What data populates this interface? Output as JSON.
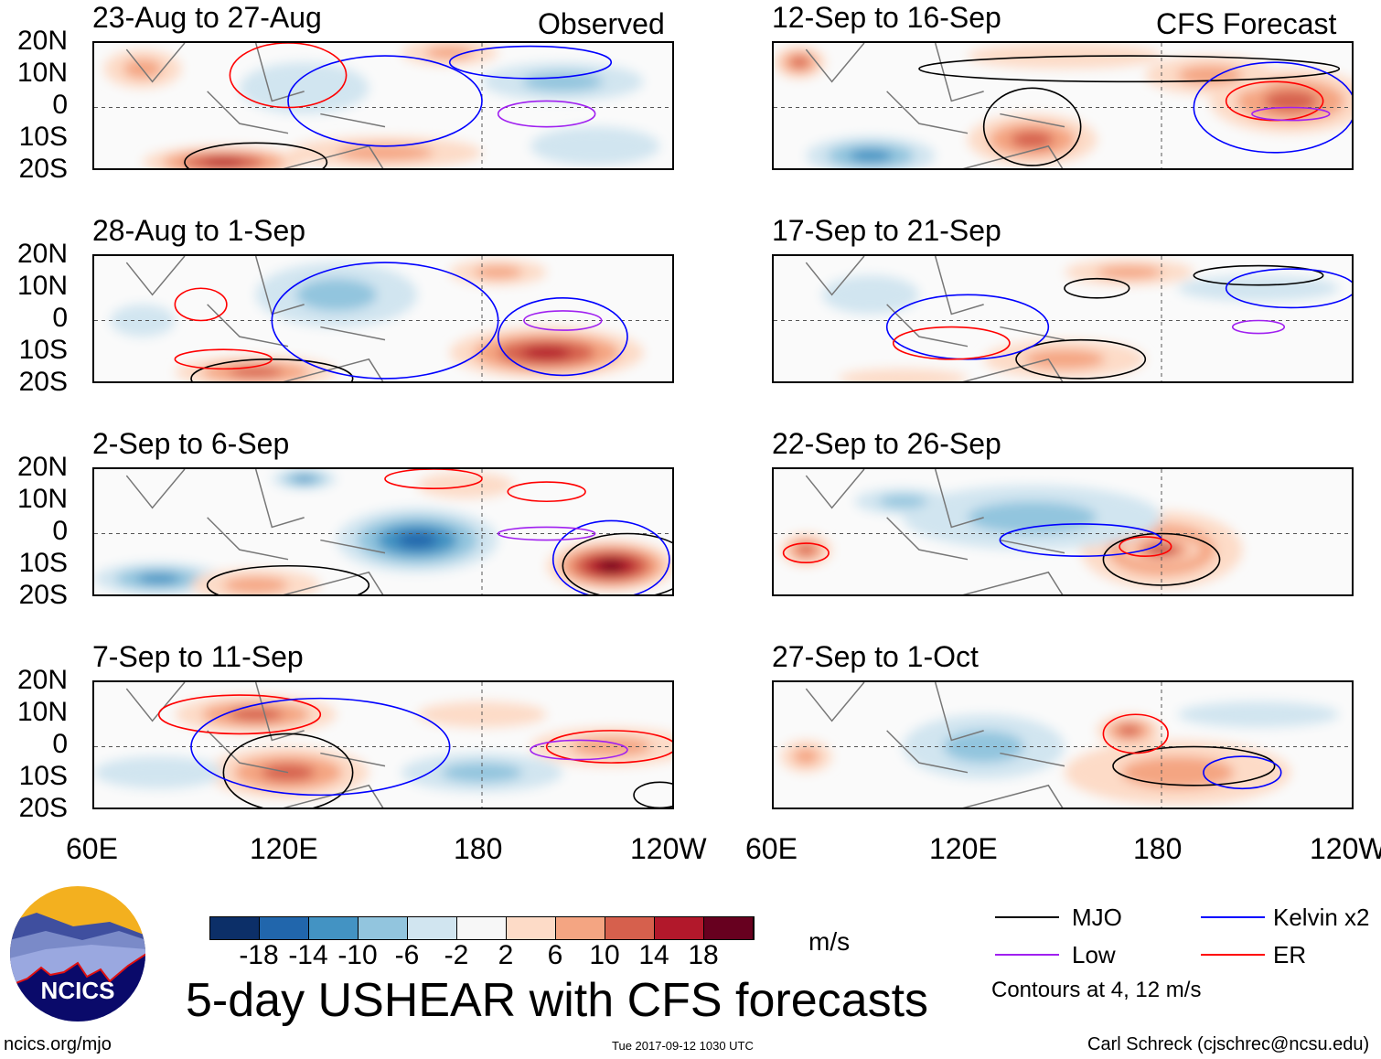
{
  "colorbar": {
    "units": "m/s",
    "levels": [
      "-18",
      "-14",
      "-10",
      "-6",
      "-2",
      "2",
      "6",
      "10",
      "14",
      "18"
    ],
    "colors": [
      "#0c2f68",
      "#2166ac",
      "#4393c3",
      "#92c5de",
      "#d1e5f0",
      "#f7f7f7",
      "#fddbc7",
      "#f4a582",
      "#d6604d",
      "#b2182b",
      "#67001f"
    ]
  },
  "title": "5-day USHEAR with CFS forecasts",
  "timestamp": "Tue 2017-09-12 1030 UTC",
  "credit": "Carl Schreck (cjschrec@ncsu.edu)",
  "site": "ncics.org/mjo",
  "logo_text": "NCICS",
  "column_labels": {
    "left": "Observed",
    "right": "CFS Forecast"
  },
  "y_ticks": [
    "20N",
    "10N",
    "0",
    "10S",
    "20S"
  ],
  "x_ticks": [
    "60E",
    "120E",
    "180",
    "120W"
  ],
  "legend": {
    "items": [
      {
        "label": "MJO",
        "color": "#000000"
      },
      {
        "label": "Kelvin x2",
        "color": "#0000ff"
      },
      {
        "label": "Low",
        "color": "#a020f0"
      },
      {
        "label": "ER",
        "color": "#ff0000"
      }
    ],
    "note": "Contours at 4, 12 m/s"
  },
  "map_data": {
    "lon_range": [
      60,
      240
    ],
    "lat_range": [
      -20,
      20
    ],
    "panels": [
      {
        "title": "23-Aug to 27-Aug",
        "shading": [
          [
            100,
            -17,
            25,
            5,
            16
          ],
          [
            150,
            -14,
            30,
            5,
            6
          ],
          [
            170,
            17,
            15,
            4,
            8
          ],
          [
            205,
            8,
            25,
            6,
            -6
          ],
          [
            125,
            6,
            20,
            8,
            -4
          ],
          [
            75,
            12,
            12,
            6,
            6
          ],
          [
            215,
            -12,
            20,
            6,
            -4
          ]
        ],
        "contours": [
          [
            "MJO",
            110,
            -17,
            22,
            6
          ],
          [
            "Kelvin",
            150,
            2,
            30,
            14
          ],
          [
            "ER",
            120,
            10,
            18,
            10
          ],
          [
            "Low",
            200,
            -2,
            15,
            4
          ],
          [
            "Kelvin",
            195,
            14,
            25,
            5
          ]
        ]
      },
      {
        "title": "12-Sep to 16-Sep",
        "shading": [
          [
            68,
            14,
            8,
            5,
            12
          ],
          [
            90,
            -15,
            20,
            6,
            -10
          ],
          [
            140,
            -10,
            20,
            8,
            10
          ],
          [
            220,
            2,
            25,
            10,
            12
          ],
          [
            195,
            10,
            20,
            6,
            6
          ],
          [
            150,
            16,
            30,
            4,
            4
          ]
        ],
        "contours": [
          [
            "MJO",
            170,
            12,
            65,
            4
          ],
          [
            "MJO",
            140,
            -6,
            15,
            12
          ],
          [
            "Kelvin",
            215,
            0,
            25,
            14
          ],
          [
            "ER",
            215,
            2,
            15,
            6
          ],
          [
            "Low",
            220,
            -2,
            12,
            2
          ]
        ]
      },
      {
        "title": "28-Aug to 1-Sep",
        "shading": [
          [
            110,
            -16,
            25,
            5,
            12
          ],
          [
            135,
            8,
            25,
            10,
            -8
          ],
          [
            200,
            -10,
            30,
            8,
            14
          ],
          [
            185,
            15,
            15,
            4,
            6
          ],
          [
            75,
            0,
            10,
            5,
            -4
          ]
        ],
        "contours": [
          [
            "MJO",
            115,
            -18,
            25,
            6
          ],
          [
            "Kelvin",
            150,
            0,
            35,
            18
          ],
          [
            "ER",
            100,
            -12,
            15,
            3
          ],
          [
            "ER",
            93,
            5,
            8,
            5
          ],
          [
            "Low",
            205,
            0,
            12,
            3
          ],
          [
            "Kelvin",
            205,
            -5,
            20,
            12
          ]
        ]
      },
      {
        "title": "17-Sep to 21-Sep",
        "shading": [
          [
            170,
            15,
            20,
            4,
            6
          ],
          [
            150,
            -12,
            25,
            6,
            6
          ],
          [
            100,
            -18,
            20,
            3,
            4
          ],
          [
            210,
            10,
            25,
            4,
            -4
          ],
          [
            90,
            8,
            15,
            6,
            -4
          ]
        ],
        "contours": [
          [
            "MJO",
            210,
            14,
            20,
            3
          ],
          [
            "MJO",
            160,
            10,
            10,
            3
          ],
          [
            "MJO",
            155,
            -12,
            20,
            6
          ],
          [
            "Kelvin",
            120,
            -2,
            25,
            10
          ],
          [
            "ER",
            115,
            -7,
            18,
            5
          ],
          [
            "Kelvin",
            220,
            10,
            20,
            6
          ],
          [
            "Low",
            210,
            -2,
            8,
            2
          ]
        ]
      },
      {
        "title": "2-Sep to 6-Sep",
        "shading": [
          [
            160,
            -2,
            25,
            10,
            -14
          ],
          [
            125,
            17,
            10,
            3,
            -12
          ],
          [
            220,
            -10,
            20,
            8,
            20
          ],
          [
            80,
            -14,
            20,
            5,
            -10
          ],
          [
            110,
            -16,
            20,
            5,
            8
          ],
          [
            175,
            15,
            15,
            4,
            4
          ]
        ],
        "contours": [
          [
            "MJO",
            120,
            -16,
            25,
            6
          ],
          [
            "MJO",
            225,
            -10,
            20,
            10
          ],
          [
            "Kelvin",
            220,
            -8,
            18,
            12
          ],
          [
            "ER",
            165,
            17,
            15,
            3
          ],
          [
            "ER",
            200,
            13,
            12,
            3
          ],
          [
            "Low",
            200,
            0,
            15,
            2
          ]
        ]
      },
      {
        "title": "22-Sep to 26-Sep",
        "shading": [
          [
            180,
            -5,
            25,
            12,
            10
          ],
          [
            180,
            -5,
            12,
            4,
            14
          ],
          [
            70,
            -5,
            8,
            5,
            10
          ],
          [
            140,
            5,
            40,
            10,
            -6
          ],
          [
            100,
            10,
            15,
            4,
            -8
          ]
        ],
        "contours": [
          [
            "MJO",
            180,
            -8,
            18,
            8
          ],
          [
            "Kelvin",
            155,
            -2,
            25,
            5
          ],
          [
            "ER",
            70,
            -6,
            7,
            3
          ],
          [
            "ER",
            175,
            -4,
            8,
            3
          ]
        ]
      },
      {
        "title": "7-Sep to 11-Sep",
        "shading": [
          [
            110,
            10,
            25,
            6,
            12
          ],
          [
            120,
            -8,
            25,
            8,
            10
          ],
          [
            180,
            10,
            20,
            4,
            4
          ],
          [
            220,
            0,
            25,
            6,
            8
          ],
          [
            180,
            -8,
            25,
            6,
            -6
          ],
          [
            80,
            -8,
            20,
            5,
            -4
          ]
        ],
        "contours": [
          [
            "MJO",
            120,
            -8,
            20,
            12
          ],
          [
            "ER",
            105,
            10,
            25,
            6
          ],
          [
            "Kelvin",
            130,
            0,
            40,
            15
          ],
          [
            "ER",
            220,
            0,
            20,
            5
          ],
          [
            "Low",
            210,
            -1,
            15,
            3
          ],
          [
            "MJO",
            235,
            -15,
            8,
            4
          ]
        ]
      },
      {
        "title": "27-Sep to 1-Oct",
        "shading": [
          [
            185,
            -8,
            35,
            10,
            8
          ],
          [
            170,
            5,
            10,
            5,
            12
          ],
          [
            70,
            -3,
            8,
            5,
            8
          ],
          [
            125,
            0,
            25,
            10,
            -8
          ],
          [
            210,
            10,
            25,
            4,
            -4
          ]
        ],
        "contours": [
          [
            "MJO",
            190,
            -6,
            25,
            6
          ],
          [
            "Kelvin",
            205,
            -8,
            12,
            5
          ],
          [
            "ER",
            172,
            4,
            10,
            6
          ]
        ]
      }
    ]
  }
}
